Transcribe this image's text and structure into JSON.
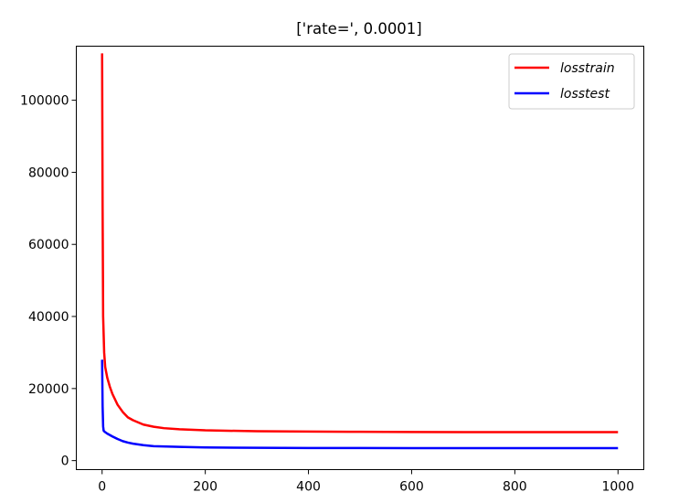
{
  "chart_data": {
    "type": "line",
    "title": "['rate=', 0.0001]",
    "xlabel": "",
    "ylabel": "",
    "xlim": [
      -50,
      1050
    ],
    "ylim": [
      -2500,
      115000
    ],
    "xticks": [
      0,
      200,
      400,
      600,
      800,
      1000
    ],
    "yticks": [
      0,
      20000,
      40000,
      60000,
      80000,
      100000
    ],
    "grid": false,
    "legend_position": "top-right",
    "series": [
      {
        "name": "losstrain",
        "color": "#ff0000",
        "x": [
          0,
          1,
          2,
          4,
          6,
          8,
          10,
          15,
          20,
          30,
          40,
          50,
          60,
          80,
          100,
          120,
          150,
          200,
          300,
          400,
          500,
          600,
          700,
          800,
          900,
          1000
        ],
        "y": [
          113000,
          70000,
          40000,
          30000,
          26000,
          24500,
          23000,
          20500,
          18500,
          15500,
          13500,
          12000,
          11200,
          10000,
          9400,
          9000,
          8700,
          8400,
          8150,
          8050,
          8000,
          7950,
          7900,
          7900,
          7900,
          7900
        ]
      },
      {
        "name": "losstest",
        "color": "#0000ff",
        "x": [
          0,
          1,
          2,
          3,
          5,
          10,
          20,
          30,
          40,
          50,
          60,
          80,
          100,
          150,
          200,
          300,
          400,
          500,
          600,
          700,
          800,
          900,
          1000
        ],
        "y": [
          28000,
          15000,
          9500,
          8300,
          8000,
          7500,
          6700,
          6000,
          5400,
          5000,
          4700,
          4300,
          4000,
          3800,
          3650,
          3550,
          3500,
          3500,
          3480,
          3470,
          3460,
          3450,
          3450
        ]
      }
    ]
  }
}
